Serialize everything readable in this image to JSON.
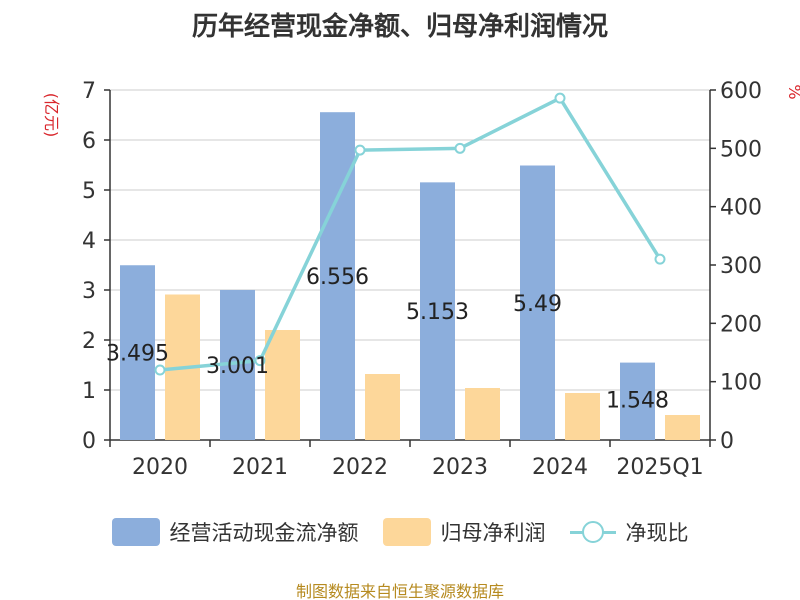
{
  "title": "历年经营现金净额、归母净利润情况",
  "footer": "制图数据来自恒生聚源数据库",
  "chart_data": {
    "type": "bar",
    "categories": [
      "2020",
      "2021",
      "2022",
      "2023",
      "2024",
      "2025Q1"
    ],
    "y_left": {
      "label": "(亿元)",
      "range": [
        0,
        7
      ],
      "ticks": [
        0,
        1,
        2,
        3,
        4,
        5,
        6,
        7
      ]
    },
    "y_right": {
      "label": "%",
      "range": [
        0,
        600
      ],
      "ticks": [
        0,
        100,
        200,
        300,
        400,
        500,
        600
      ]
    },
    "grid": true,
    "legend_position": "bottom",
    "series": [
      {
        "name": "经营活动现金流净额",
        "type": "bar",
        "axis": "left",
        "color": "#8caedc",
        "values": [
          3.495,
          3.001,
          6.556,
          5.153,
          5.49,
          1.548
        ],
        "labels": [
          "3.495",
          "3.001",
          "6.556",
          "5.153",
          "5.49",
          "1.548"
        ]
      },
      {
        "name": "归母净利润",
        "type": "bar",
        "axis": "left",
        "color": "#fdd79a",
        "values": [
          2.91,
          2.2,
          1.32,
          1.04,
          0.94,
          0.5
        ]
      },
      {
        "name": "净现比",
        "type": "line",
        "axis": "right",
        "color": "#86d3d8",
        "values": [
          120,
          136,
          497,
          500,
          586,
          310
        ]
      }
    ]
  }
}
